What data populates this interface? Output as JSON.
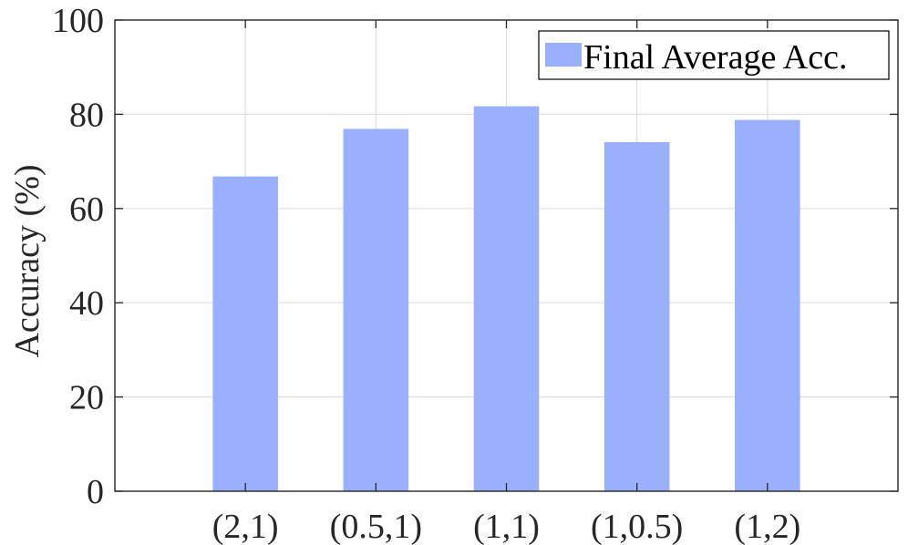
{
  "chart_data": {
    "type": "bar",
    "title": "",
    "xlabel": "",
    "ylabel": "Accuracy (%)",
    "categories": [
      "(2,1)",
      "(0.5,1)",
      "(1,1)",
      "(1,0.5)",
      "(1,2)"
    ],
    "series": [
      {
        "name": "Final Average Acc.",
        "values": [
          66.8,
          76.9,
          81.7,
          74.1,
          78.8
        ],
        "color": "#9bb0fd"
      }
    ],
    "ylim": [
      0,
      100
    ],
    "yticks": [
      0,
      20,
      40,
      60,
      80,
      100
    ],
    "xlim": [
      0,
      6
    ],
    "grid": true,
    "legend_position": "top-right",
    "colors": {
      "grid": "#dfdfdf",
      "axis": "#262626",
      "text": "#262626"
    }
  }
}
